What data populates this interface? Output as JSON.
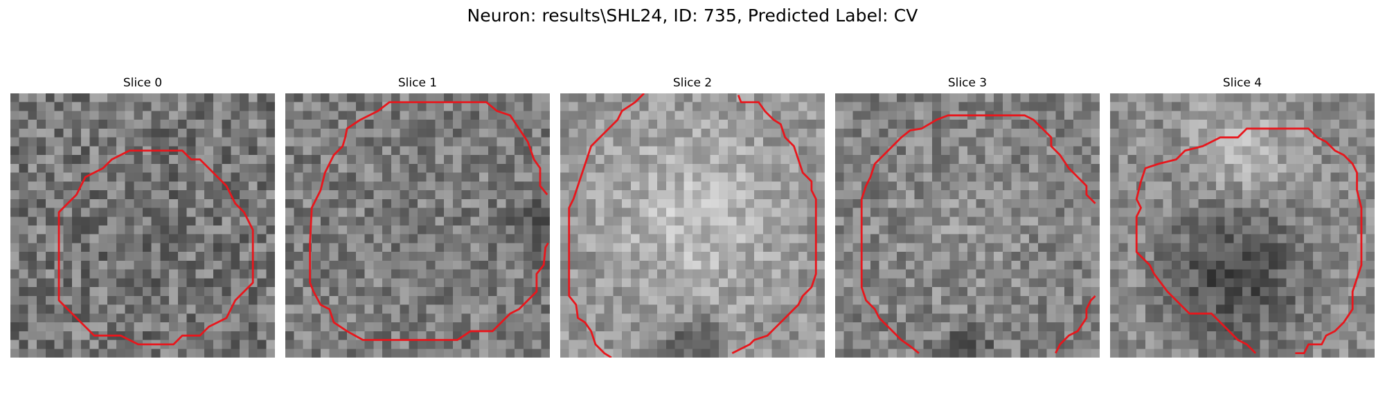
{
  "figure": {
    "title": "Neuron: results\\SHL24, ID: 735, Predicted Label: CV",
    "colors": {
      "contour": "#e8161c",
      "background": "#ffffff"
    },
    "colormap": "gray",
    "grid_size": 30
  },
  "panels": [
    {
      "title": "Slice 0",
      "contour_closed": true,
      "contour": [
        [
          13.5,
          6.5
        ],
        [
          19.5,
          6.5
        ],
        [
          20.5,
          7.5
        ],
        [
          21.5,
          7.5
        ],
        [
          24.5,
          10.5
        ],
        [
          25.5,
          12.5
        ],
        [
          26.5,
          13.5
        ],
        [
          27.5,
          15.5
        ],
        [
          27.5,
          21.5
        ],
        [
          26.5,
          22.5
        ],
        [
          25.5,
          23.5
        ],
        [
          24.5,
          25.5
        ],
        [
          22.5,
          26.5
        ],
        [
          21.5,
          27.5
        ],
        [
          19.5,
          27.5
        ],
        [
          18.5,
          28.5
        ],
        [
          14.5,
          28.5
        ],
        [
          12.5,
          27.5
        ],
        [
          9.5,
          27.5
        ],
        [
          8.5,
          26.5
        ],
        [
          6.5,
          24.5
        ],
        [
          5.5,
          23.5
        ],
        [
          5.5,
          13.5
        ],
        [
          6.5,
          12.5
        ],
        [
          7.5,
          11.5
        ],
        [
          8.5,
          9.5
        ],
        [
          10.5,
          8.5
        ],
        [
          11.5,
          7.5
        ],
        [
          12.5,
          7.0
        ]
      ]
    },
    {
      "title": "Slice 1",
      "contour_closed": false,
      "contour": [
        [
          29.7,
          11.5
        ],
        [
          28.9,
          10.5
        ],
        [
          28.9,
          8.5
        ],
        [
          28.2,
          7.5
        ],
        [
          27.5,
          5.5
        ],
        [
          26.5,
          4.0
        ],
        [
          25.5,
          2.5
        ],
        [
          24.0,
          2.0
        ],
        [
          22.8,
          1.0
        ],
        [
          11.8,
          1.0
        ],
        [
          10.5,
          2.0
        ],
        [
          8.5,
          3.0
        ],
        [
          7.0,
          4.0
        ],
        [
          6.8,
          5.0
        ],
        [
          6.5,
          6.0
        ],
        [
          5.5,
          7.0
        ],
        [
          5.0,
          8.0
        ],
        [
          4.5,
          9.0
        ],
        [
          4.0,
          11.0
        ],
        [
          3.5,
          12.0
        ],
        [
          3.0,
          13.0
        ],
        [
          2.8,
          17.0
        ],
        [
          2.8,
          21.5
        ],
        [
          3.2,
          22.5
        ],
        [
          4.0,
          24.0
        ],
        [
          5.0,
          24.5
        ],
        [
          5.5,
          26.0
        ],
        [
          7.0,
          27.0
        ],
        [
          8.8,
          28.0
        ],
        [
          19.5,
          28.0
        ],
        [
          21.0,
          27.0
        ],
        [
          23.5,
          27.0
        ],
        [
          25.5,
          25.0
        ],
        [
          26.5,
          24.5
        ],
        [
          27.5,
          23.5
        ],
        [
          28.5,
          22.5
        ],
        [
          28.5,
          20.5
        ],
        [
          29.3,
          19.5
        ],
        [
          29.5,
          17.5
        ],
        [
          29.8,
          17.0
        ]
      ]
    },
    {
      "title": "Slice 2",
      "contour_closed": false,
      "contour": [
        [
          9.5,
          0.0
        ],
        [
          8.5,
          1.0
        ],
        [
          7.0,
          2.0
        ],
        [
          6.5,
          3.0
        ],
        [
          5.5,
          4.0
        ],
        [
          4.5,
          5.0
        ],
        [
          3.5,
          6.0
        ],
        [
          3.0,
          7.5
        ],
        [
          2.5,
          9.0
        ],
        [
          2.0,
          10.5
        ],
        [
          1.5,
          12.0
        ],
        [
          1.0,
          13.0
        ],
        [
          1.0,
          23.0
        ],
        [
          1.8,
          24.0
        ],
        [
          2.0,
          25.5
        ],
        [
          2.8,
          26.0
        ],
        [
          3.5,
          27.0
        ],
        [
          4.0,
          28.5
        ],
        [
          5.0,
          29.5
        ],
        [
          5.8,
          30.0
        ]
      ]
    },
    {
      "title": "Slice 2",
      "contour_closed": false,
      "contour": [
        [
          20.2,
          0.2
        ],
        [
          20.5,
          1.0
        ],
        [
          22.5,
          1.0
        ],
        [
          23.2,
          2.0
        ],
        [
          24.2,
          3.0
        ],
        [
          25.0,
          3.5
        ],
        [
          25.5,
          5.0
        ],
        [
          26.5,
          6.0
        ],
        [
          27.0,
          7.5
        ],
        [
          27.5,
          9.0
        ],
        [
          28.5,
          10.0
        ],
        [
          28.5,
          11.0
        ],
        [
          29.0,
          12.0
        ],
        [
          29.0,
          20.5
        ],
        [
          28.5,
          22.0
        ],
        [
          27.5,
          23.0
        ],
        [
          27.0,
          24.0
        ],
        [
          25.5,
          25.5
        ],
        [
          24.5,
          26.5
        ],
        [
          23.5,
          27.5
        ],
        [
          22.0,
          28.0
        ],
        [
          21.5,
          28.5
        ],
        [
          20.5,
          29.0
        ],
        [
          19.5,
          29.5
        ]
      ]
    },
    {
      "title": "Slice 3",
      "contour_closed": false,
      "contour": [
        [
          29.5,
          12.5
        ],
        [
          28.5,
          11.5
        ],
        [
          28.5,
          10.5
        ],
        [
          27.5,
          9.5
        ],
        [
          26.5,
          8.5
        ],
        [
          25.5,
          7.0
        ],
        [
          24.5,
          6.0
        ],
        [
          24.5,
          5.0
        ],
        [
          23.5,
          4.0
        ],
        [
          22.5,
          3.0
        ],
        [
          21.5,
          2.5
        ],
        [
          12.8,
          2.5
        ],
        [
          11.5,
          3.0
        ],
        [
          9.8,
          4.0
        ],
        [
          8.5,
          4.2
        ],
        [
          7.5,
          5.0
        ],
        [
          6.5,
          6.0
        ],
        [
          5.5,
          7.0
        ],
        [
          4.5,
          8.0
        ],
        [
          4.0,
          9.5
        ],
        [
          3.5,
          10.5
        ],
        [
          3.0,
          12.0
        ],
        [
          3.0,
          19.0
        ],
        [
          3.0,
          22.0
        ],
        [
          3.5,
          23.5
        ],
        [
          4.5,
          24.5
        ],
        [
          5.0,
          25.5
        ],
        [
          6.5,
          27.0
        ],
        [
          7.5,
          28.0
        ],
        [
          8.5,
          28.7
        ],
        [
          9.5,
          29.5
        ]
      ]
    },
    {
      "title": "Slice 3",
      "contour_closed": false,
      "contour": [
        [
          29.5,
          23.0
        ],
        [
          29.0,
          23.5
        ],
        [
          28.5,
          24.5
        ],
        [
          28.5,
          25.5
        ],
        [
          27.5,
          27.0
        ],
        [
          26.5,
          27.5
        ],
        [
          25.5,
          28.5
        ],
        [
          25.0,
          29.5
        ]
      ]
    },
    {
      "title": "Slice 4",
      "contour_closed": false,
      "contour": [
        [
          16.5,
          29.5
        ],
        [
          15.5,
          28.5
        ],
        [
          14.5,
          28.0
        ],
        [
          13.5,
          27.0
        ],
        [
          12.5,
          26.0
        ],
        [
          11.5,
          25.0
        ],
        [
          10.5,
          25.0
        ],
        [
          9.0,
          25.0
        ],
        [
          8.5,
          24.5
        ],
        [
          7.5,
          23.5
        ],
        [
          6.5,
          22.5
        ],
        [
          5.0,
          20.5
        ],
        [
          4.5,
          19.5
        ],
        [
          3.0,
          18.0
        ],
        [
          3.0,
          14.0
        ],
        [
          3.5,
          13.0
        ],
        [
          3.0,
          12.0
        ],
        [
          3.5,
          10.0
        ],
        [
          4.0,
          8.5
        ],
        [
          5.5,
          8.0
        ],
        [
          7.5,
          7.5
        ],
        [
          8.5,
          6.5
        ],
        [
          10.5,
          6.0
        ],
        [
          12.5,
          5.0
        ],
        [
          14.5,
          5.0
        ],
        [
          15.5,
          4.0
        ],
        [
          16.5,
          4.0
        ],
        [
          16.5,
          4.0
        ],
        [
          22.5,
          4.0
        ],
        [
          23.5,
          5.0
        ],
        [
          24.5,
          5.5
        ],
        [
          25.5,
          6.5
        ],
        [
          26.5,
          7.0
        ],
        [
          27.5,
          8.0
        ],
        [
          28.0,
          9.0
        ],
        [
          28.0,
          11.0
        ],
        [
          28.5,
          13.0
        ],
        [
          28.5,
          19.5
        ],
        [
          28.0,
          21.0
        ],
        [
          27.5,
          22.5
        ],
        [
          27.5,
          24.5
        ],
        [
          26.5,
          26.0
        ],
        [
          25.5,
          27.0
        ],
        [
          24.5,
          27.5
        ],
        [
          24.0,
          28.5
        ],
        [
          22.5,
          28.5
        ],
        [
          22.0,
          29.5
        ],
        [
          21.0,
          29.5
        ]
      ]
    }
  ]
}
